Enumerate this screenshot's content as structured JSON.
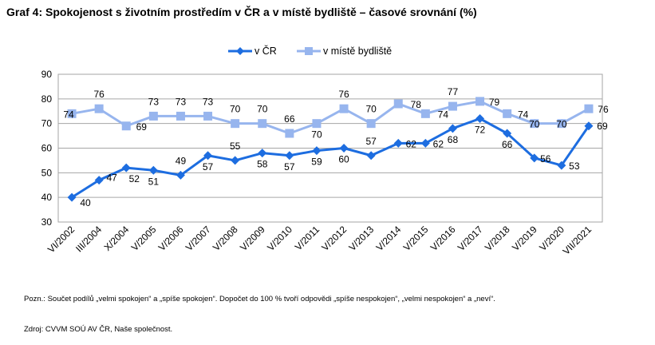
{
  "title": "Graf 4: Spokojenost s životním prostředím v ČR a v místě bydliště – časové srovnání (%)",
  "note": "Pozn.: Součet podílů „velmi spokojen“ a „spíše spokojen“. Dopočet do 100 % tvoří odpovědi „spíše nespokojen“, „velmi nespokojen“ a „neví“.",
  "source": "Zdroj: CVVM SOÚ AV ČR, Naše společnost.",
  "colors": {
    "cr": "#1d6de0",
    "misto": "#97b5ee",
    "grid": "#a6a6a6"
  },
  "chart_data": {
    "type": "line",
    "categories": [
      "VI/2002",
      "III/2004",
      "X/2004",
      "V/2005",
      "V/2006",
      "V/2007",
      "V/2008",
      "V/2009",
      "V/2010",
      "V/2011",
      "V/2012",
      "V/2013",
      "V/2014",
      "V/2015",
      "V/2016",
      "V/2017",
      "V/2018",
      "V/2019",
      "V/2020",
      "VII/2021"
    ],
    "ylim": [
      30,
      90
    ],
    "yticks": [
      "30",
      "40",
      "50",
      "60",
      "70",
      "80",
      "90"
    ],
    "grid": true,
    "legend_position": "top",
    "series": [
      {
        "name": "v ČR",
        "marker": "diamond",
        "values": [
          40,
          47,
          52,
          51,
          49,
          57,
          55,
          58,
          57,
          59,
          60,
          57,
          62,
          62,
          68,
          72,
          66,
          56,
          53,
          69
        ]
      },
      {
        "name": "v místě bydliště",
        "marker": "square",
        "values": [
          74,
          76,
          69,
          73,
          73,
          73,
          70,
          70,
          66,
          70,
          76,
          70,
          78,
          74,
          77,
          79,
          74,
          70,
          70,
          76
        ]
      }
    ]
  }
}
